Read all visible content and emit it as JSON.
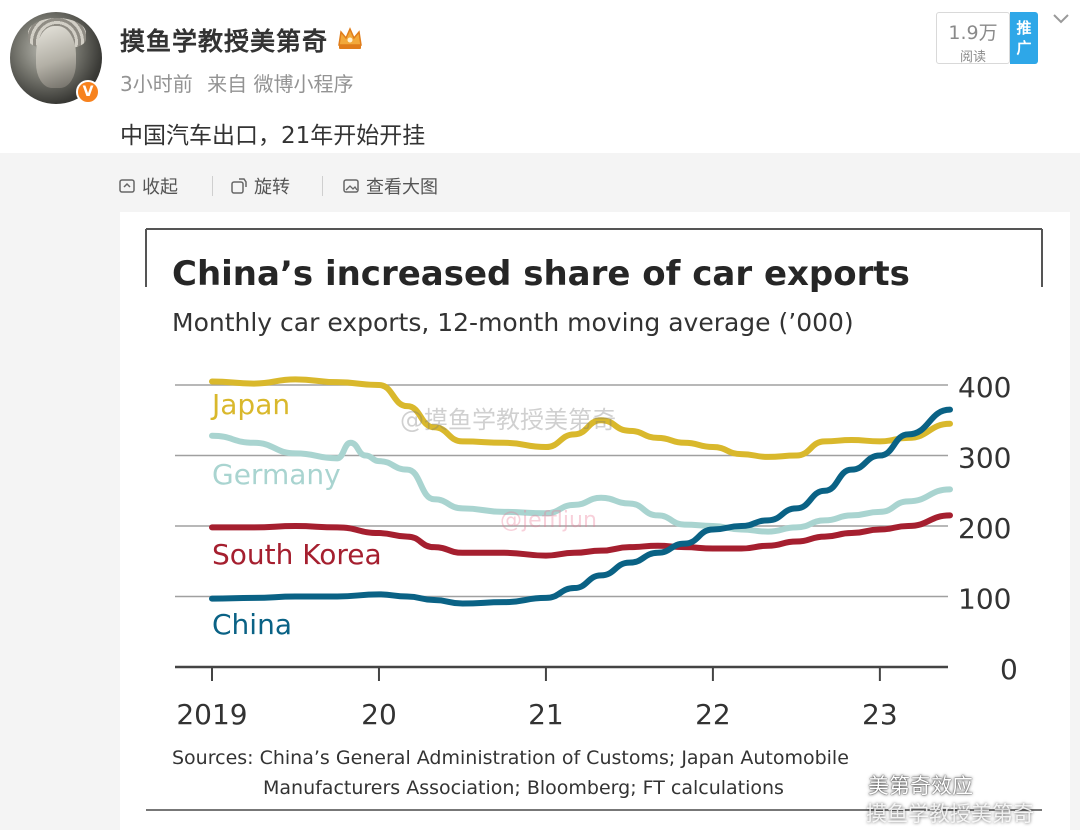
{
  "post": {
    "username": "摸鱼学教授美第奇",
    "time": "3小时前",
    "source": "来自 微博小程序",
    "content": "中国汽车出口，21年开始开挂",
    "reads_count": "1.9万",
    "reads_label": "阅读",
    "promote_label": "推广"
  },
  "actions": {
    "collapse": "收起",
    "rotate": "旋转",
    "view_large": "查看大图"
  },
  "watermarks": {
    "center": "@摸鱼学教授美第奇",
    "pink": "@jeffljun",
    "wechat": "美第奇效应",
    "weibo": "摸鱼学教授美第奇"
  },
  "colors": {
    "japan": "#d9b82c",
    "germany": "#a9d4d0",
    "south_korea": "#a51f2f",
    "china": "#0a6285",
    "grid": "#9a9a9a",
    "vip_orange": "#f7821e",
    "promote_blue": "#2ea7e8"
  },
  "chart_data": {
    "type": "line",
    "title": "China’s increased share of car exports",
    "subtitle": "Monthly car exports, 12-month moving average (’000)",
    "source": "Sources: China’s General Administration of Customs; Japan Automobile Manufacturers Association; Bloomberg; FT calculations",
    "source_line1": "Sources: China’s General Administration of Customs; Japan Automobile",
    "source_line2": "Manufacturers Association; Bloomberg; FT calculations",
    "x_ticks": [
      "2019",
      "20",
      "21",
      "22",
      "23"
    ],
    "x_tick_values": [
      2019,
      2020,
      2021,
      2022,
      2023
    ],
    "y_ticks": [
      0,
      100,
      200,
      300,
      400
    ],
    "ylim": [
      0,
      400
    ],
    "xlim": [
      2019,
      2023.42
    ],
    "series": [
      {
        "name": "Japan",
        "color_key": "japan",
        "x": [
          2019,
          2019.25,
          2019.5,
          2019.75,
          2020,
          2020.17,
          2020.33,
          2020.5,
          2020.75,
          2021,
          2021.17,
          2021.33,
          2021.5,
          2021.67,
          2021.83,
          2022,
          2022.17,
          2022.33,
          2022.5,
          2022.67,
          2022.83,
          2023,
          2023.17,
          2023.42
        ],
        "values": [
          405,
          402,
          408,
          404,
          400,
          370,
          340,
          320,
          318,
          312,
          330,
          350,
          335,
          325,
          318,
          312,
          302,
          298,
          300,
          320,
          322,
          320,
          325,
          345
        ]
      },
      {
        "name": "Germany",
        "color_key": "germany",
        "x": [
          2019,
          2019.25,
          2019.5,
          2019.75,
          2019.83,
          2019.92,
          2020,
          2020.17,
          2020.33,
          2020.5,
          2020.75,
          2021,
          2021.17,
          2021.33,
          2021.5,
          2021.67,
          2021.83,
          2022,
          2022.17,
          2022.33,
          2022.5,
          2022.67,
          2022.83,
          2023,
          2023.17,
          2023.42
        ],
        "values": [
          328,
          318,
          303,
          296,
          318,
          300,
          292,
          280,
          238,
          225,
          220,
          218,
          230,
          240,
          232,
          215,
          202,
          200,
          195,
          192,
          198,
          208,
          215,
          220,
          235,
          252
        ]
      },
      {
        "name": "South Korea",
        "color_key": "south_korea",
        "x": [
          2019,
          2019.25,
          2019.5,
          2019.75,
          2020,
          2020.17,
          2020.33,
          2020.5,
          2020.75,
          2021,
          2021.17,
          2021.33,
          2021.5,
          2021.67,
          2021.83,
          2022,
          2022.17,
          2022.33,
          2022.5,
          2022.67,
          2022.83,
          2023,
          2023.17,
          2023.42
        ],
        "values": [
          198,
          198,
          200,
          198,
          190,
          185,
          170,
          162,
          162,
          158,
          162,
          165,
          170,
          172,
          170,
          168,
          168,
          172,
          178,
          185,
          190,
          195,
          200,
          215
        ]
      },
      {
        "name": "China",
        "color_key": "china",
        "x": [
          2019,
          2019.25,
          2019.5,
          2019.75,
          2020,
          2020.17,
          2020.33,
          2020.5,
          2020.75,
          2021,
          2021.17,
          2021.33,
          2021.5,
          2021.67,
          2021.83,
          2022,
          2022.17,
          2022.33,
          2022.5,
          2022.67,
          2022.83,
          2023,
          2023.17,
          2023.42
        ],
        "values": [
          97,
          98,
          100,
          100,
          103,
          100,
          95,
          90,
          92,
          98,
          112,
          130,
          148,
          162,
          175,
          195,
          200,
          208,
          225,
          250,
          280,
          300,
          330,
          365
        ]
      }
    ],
    "line_labels": [
      {
        "series": "Japan",
        "text": "Japan"
      },
      {
        "series": "Germany",
        "text": "Germany"
      },
      {
        "series": "South Korea",
        "text": "South Korea"
      },
      {
        "series": "China",
        "text": "China"
      }
    ]
  }
}
